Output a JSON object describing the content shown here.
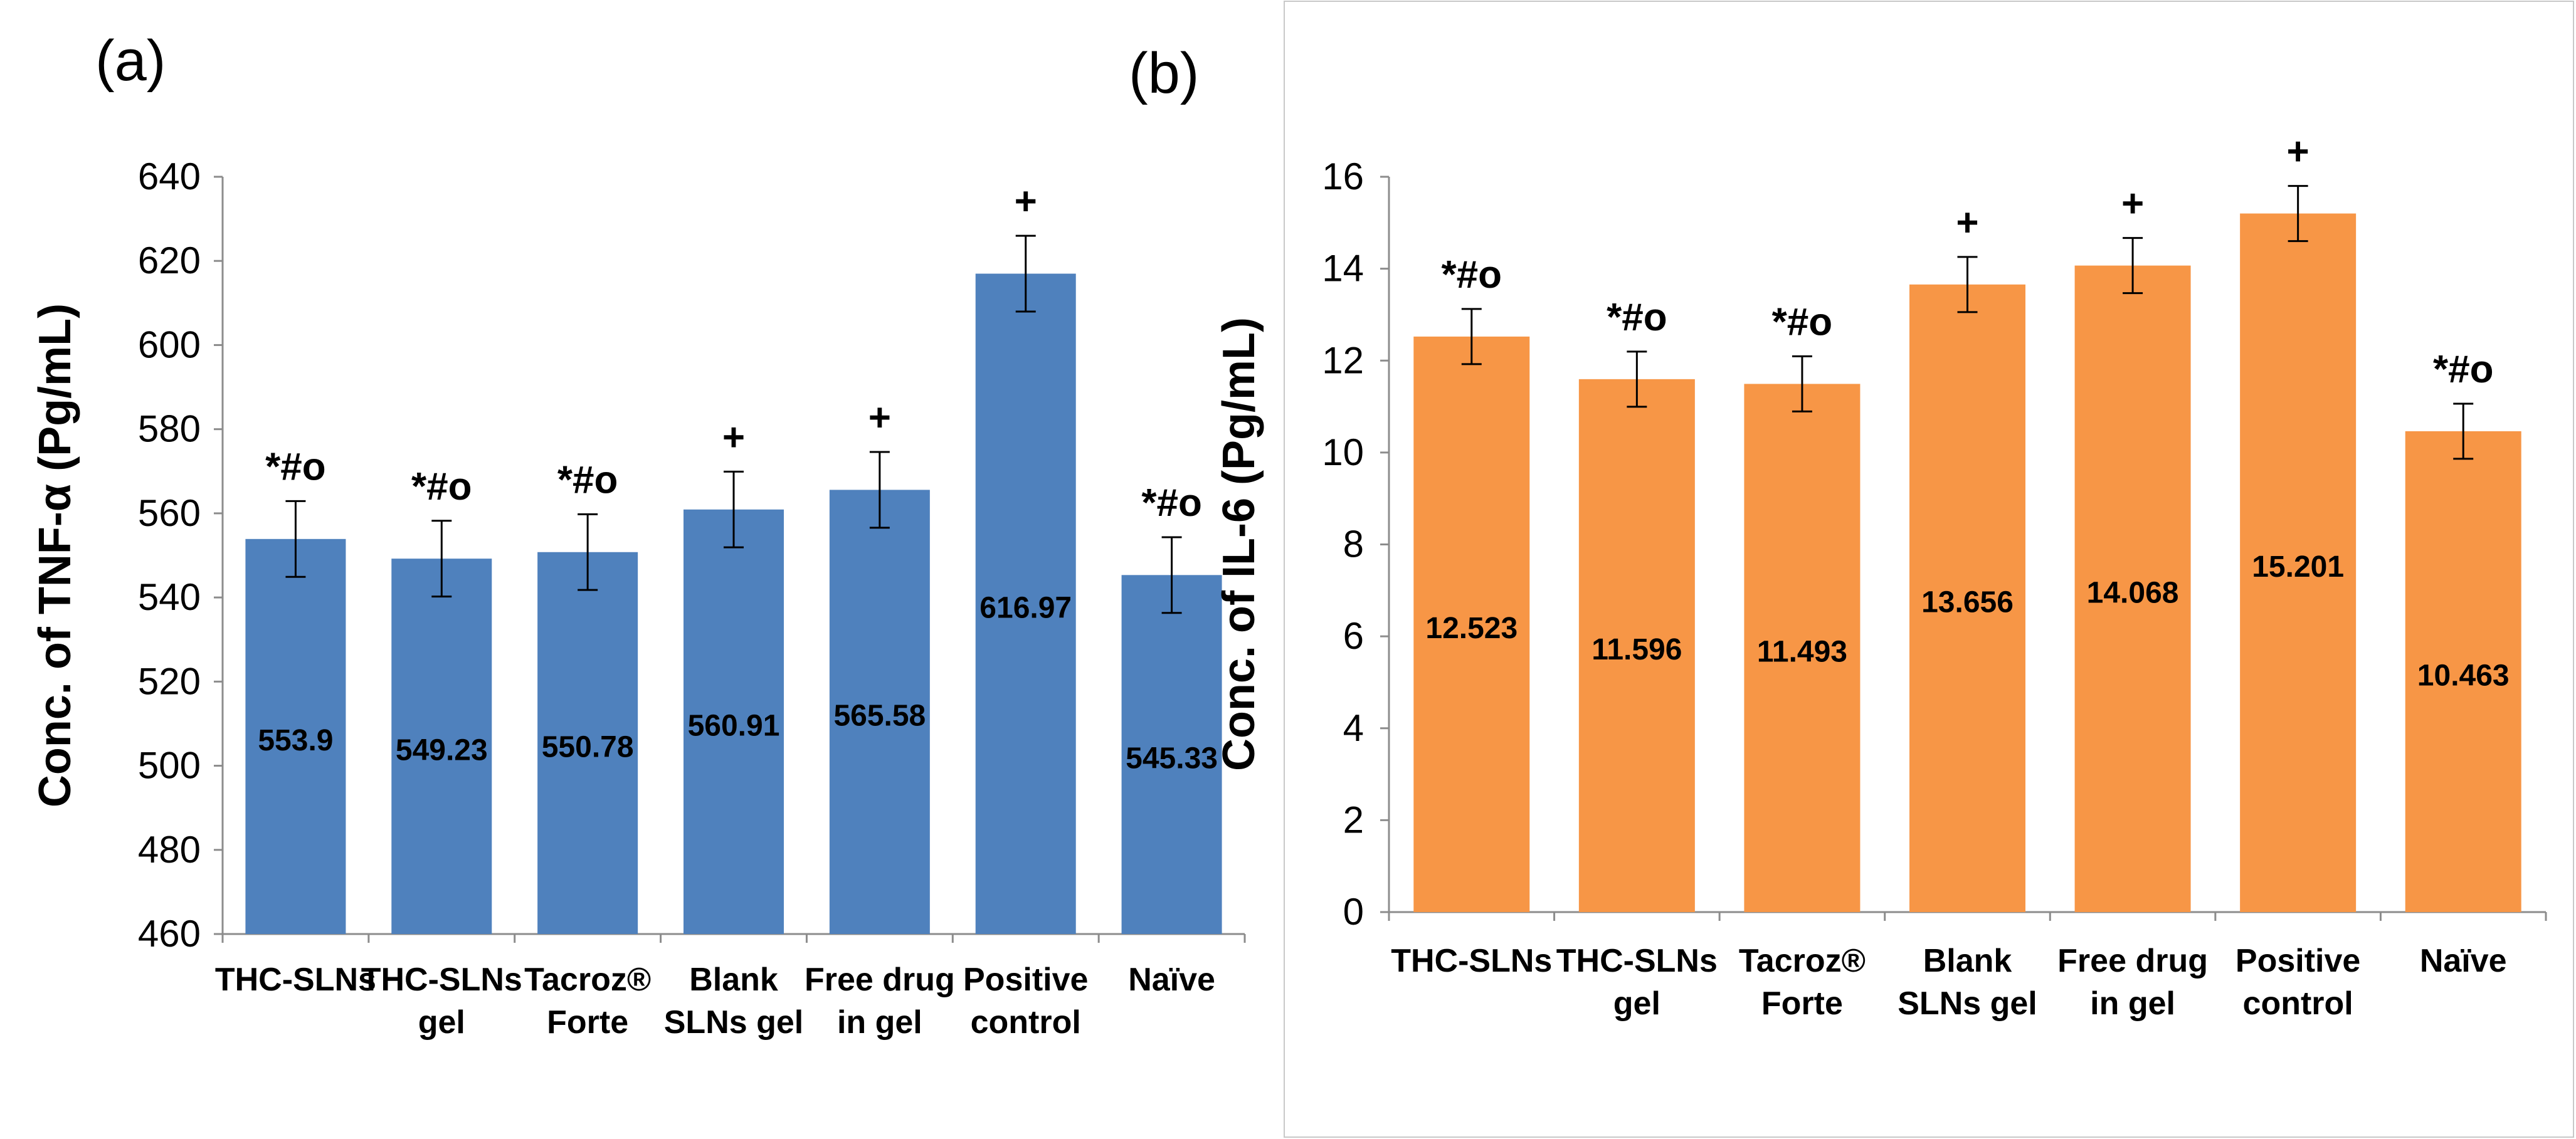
{
  "chart_data": [
    {
      "type": "bar",
      "panel_label": "(a)",
      "title": "",
      "xlabel": "",
      "ylabel": "Conc. of  TNF-α  (Pg/mL)",
      "ylim": [
        460,
        640
      ],
      "yticks": [
        460,
        480,
        500,
        520,
        540,
        560,
        580,
        600,
        620,
        640
      ],
      "bar_color": "#4F81BD",
      "categories": [
        [
          "THC-SLNs"
        ],
        [
          "THC-SLNs",
          "gel"
        ],
        [
          "Tacroz®",
          "Forte"
        ],
        [
          "Blank",
          "SLNs gel"
        ],
        [
          "Free drug",
          "in gel"
        ],
        [
          "Positive",
          "control"
        ],
        [
          "Naïve"
        ]
      ],
      "values": [
        553.9,
        549.23,
        550.78,
        560.91,
        565.58,
        616.97,
        545.33
      ],
      "value_labels": [
        "553.9",
        "549.23",
        "550.78",
        "560.91",
        "565.58",
        "616.97",
        "545.33"
      ],
      "errors": [
        9,
        9,
        9,
        9,
        9,
        9,
        9
      ],
      "annotations": [
        "*#o",
        "*#o",
        "*#o",
        "+",
        "+",
        "+",
        "*#o"
      ]
    },
    {
      "type": "bar",
      "panel_label": "(b)",
      "title": "",
      "xlabel": "",
      "ylabel": "Conc. of  IL-6 (Pg/mL)",
      "ylim": [
        0,
        16
      ],
      "yticks": [
        0,
        2,
        4,
        6,
        8,
        10,
        12,
        14,
        16
      ],
      "bar_color": "#F79646",
      "categories": [
        [
          "THC-SLNs"
        ],
        [
          "THC-SLNs",
          "gel"
        ],
        [
          "Tacroz®",
          "Forte"
        ],
        [
          "Blank",
          "SLNs gel"
        ],
        [
          "Free drug",
          "in gel"
        ],
        [
          "Positive",
          "control"
        ],
        [
          "Naïve"
        ]
      ],
      "values": [
        12.523,
        11.596,
        11.493,
        13.656,
        14.068,
        15.201,
        10.463
      ],
      "value_labels": [
        "12.523",
        "11.596",
        "11.493",
        "13.656",
        "14.068",
        "15.201",
        "10.463"
      ],
      "errors": [
        0.6,
        0.6,
        0.6,
        0.6,
        0.6,
        0.6,
        0.6
      ],
      "annotations": [
        "*#o",
        "*#o",
        "*#o",
        "+",
        "+",
        "+",
        "*#o"
      ]
    }
  ]
}
